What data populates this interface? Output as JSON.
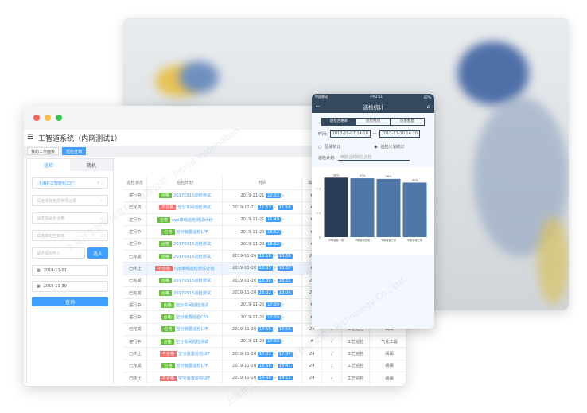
{
  "window": {
    "title": "工智道系统（内网测试1）",
    "page_tabs": [
      "我的工作面板",
      "巡检查询"
    ]
  },
  "filter": {
    "tabs": [
      "巡检",
      "随机"
    ],
    "plant_tag": "上海井工智能化工厂",
    "placeholders": [
      "请选择有无异常项记录",
      "请选择是否合格",
      "请选择巡检状态",
      "请选择巡检人"
    ],
    "select_person": "选人",
    "date_from": "2019-11-01",
    "date_to": "2019-11-30",
    "query": "查询"
  },
  "table": {
    "headers": [
      "巡检状态",
      "巡检计划",
      "时间",
      "填写",
      "",
      "",
      ""
    ],
    "rows": [
      [
        "进行中",
        "合格",
        "20170915巡检测试",
        "2019-11-21",
        "12:03",
        "",
        "#",
        "",
        "",
        ""
      ],
      [
        "已完成",
        "不合格",
        "空分车间巡检测试",
        "2019-11-21",
        "11:53",
        "11:58",
        "#",
        "",
        "",
        ""
      ],
      [
        "进行中",
        "合格",
        "cyp离线巡检测试计划",
        "2019-11-21",
        "11:49",
        "",
        "#",
        "",
        "",
        ""
      ],
      [
        "进行中",
        "合格",
        "空分装置巡检LPF",
        "2019-11-20",
        "18:52",
        "",
        "#",
        "",
        "",
        ""
      ],
      [
        "进行中",
        "合格",
        "20170915巡检测试",
        "2019-11-20",
        "18:52",
        "",
        "#",
        "",
        "",
        ""
      ],
      [
        "已完成",
        "合格",
        "20170915巡检测试",
        "2019-11-20",
        "18:18",
        "18:39",
        "24",
        "",
        "",
        ""
      ],
      [
        "已终止",
        "不合格",
        "cyp离线巡检测试计划",
        "2019-11-20",
        "18:35",
        "18:37",
        "#",
        "",
        "",
        ""
      ],
      [
        "已完成",
        "合格",
        "20170915巡检测试",
        "2019-11-20",
        "18:30",
        "18:31",
        "24",
        "",
        "",
        ""
      ],
      [
        "已完成",
        "合格",
        "20170915巡检测试",
        "2019-11-20",
        "18:02",
        "18:04",
        "24",
        "",
        "",
        ""
      ],
      [
        "进行中",
        "合格",
        "空分车间巡检测试",
        "2019-11-20",
        "17:59",
        "",
        "#",
        "",
        "",
        ""
      ],
      [
        "进行中",
        "合格",
        "空分装置巡检CSY",
        "2019-11-20",
        "17:59",
        "",
        "#",
        "",
        "",
        ""
      ],
      [
        "已完成",
        "合格",
        "空分装置巡检LPF",
        "2019-11-20",
        "17:55",
        "17:56",
        "24",
        "♪",
        "工艺巡检",
        "阀阀"
      ],
      [
        "进行中",
        "合格",
        "空分车间巡检测试",
        "2019-11-20",
        "17:03",
        "",
        "#",
        "♪",
        "工艺巡检",
        "气化工段"
      ],
      [
        "已终止",
        "不合格",
        "空分装置巡检LPF",
        "2019-11-20",
        "17:01",
        "17:04",
        "24",
        "♪",
        "工艺巡检",
        "阀阀"
      ],
      [
        "已完成",
        "合格",
        "空分装置巡检LPF",
        "2019-11-20",
        "16:58",
        "16:41",
        "24",
        "♪",
        "工艺巡检",
        "阀阀"
      ],
      [
        "已终止",
        "不合格",
        "空分装置巡检LPF",
        "2019-11-20",
        "14:48",
        "14:55",
        "24",
        "♪",
        "工艺巡检",
        "阀阀"
      ]
    ],
    "highlight_row": 6
  },
  "phone": {
    "carrier": "中国移动",
    "clock": "下午2:11",
    "battery": "67%",
    "title": "巡检统计",
    "segments": [
      "巡检合格率",
      "巡检时间",
      "隐患数量"
    ],
    "time_label": "时间:",
    "date_from": "2017-10-07 14:10",
    "date_to": "2017-11-10 14:10",
    "dash": "—",
    "radio_area": "区域统计",
    "radio_plan": "巡检计划统计",
    "plan_label": "巡检计划:",
    "plan_value": "甲醇合成岗位巡检"
  },
  "chart_data": {
    "type": "bar",
    "categories": [
      "甲醇装置一期",
      "甲醇装置四期",
      "甲醇装置三期",
      "甲醇装置二期"
    ],
    "values": [
      0.98,
      0.97,
      0.96,
      0.9
    ],
    "labels": [
      "98%",
      "97%",
      "96%",
      "90%"
    ],
    "yticks": [
      "0",
      "0.4",
      "0.8"
    ],
    "ylim": [
      0,
      1.05
    ],
    "colors": [
      "#2c3e57",
      "#4f77a8",
      "#4f77a8",
      "#4f77a8"
    ]
  },
  "watermark": "上海井工智能信息科技有限公司 Shanghai Introd Information Technology Co., Ltd.",
  "colors": {
    "primary": "#409eff",
    "pass": "#67c23a",
    "fail": "#f56c6c",
    "phone_header": "#34495e"
  }
}
